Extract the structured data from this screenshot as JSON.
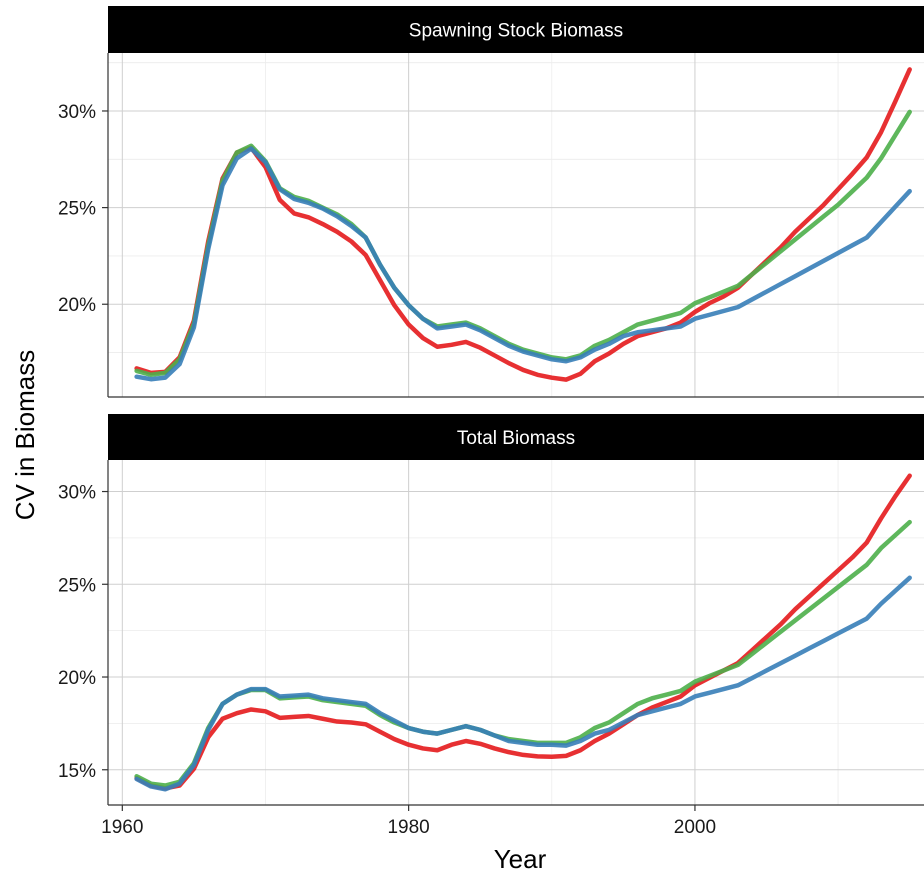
{
  "chart_data": {
    "type": "line",
    "xlabel": "Year",
    "ylabel": "CV in Biomass",
    "x_ticks": [
      1960,
      1980,
      2000
    ],
    "x_range": [
      1959,
      2016
    ],
    "legend": "none",
    "grid": true,
    "x": [
      1961,
      1962,
      1963,
      1964,
      1965,
      1966,
      1967,
      1968,
      1969,
      1970,
      1971,
      1972,
      1973,
      1974,
      1975,
      1976,
      1977,
      1978,
      1979,
      1980,
      1981,
      1982,
      1983,
      1984,
      1985,
      1986,
      1987,
      1988,
      1989,
      1990,
      1991,
      1992,
      1993,
      1994,
      1995,
      1996,
      1997,
      1998,
      1999,
      2000,
      2001,
      2002,
      2003,
      2004,
      2005,
      2006,
      2007,
      2008,
      2009,
      2010,
      2011,
      2012,
      2013,
      2014,
      2015
    ],
    "series_colors": [
      "#e41a1c",
      "#4daf4a",
      "#377eb8"
    ],
    "panels": [
      {
        "title": "Spawning Stock Biomass",
        "y_range": [
          0.152,
          0.33
        ],
        "y_ticks": [
          0.2,
          0.25,
          0.3
        ],
        "y_tick_labels": [
          "20%",
          "25%",
          "30%"
        ],
        "series": [
          {
            "color": "#e41a1c",
            "values": [
              0.1668,
              0.1645,
              0.165,
              0.1725,
              0.1915,
              0.2325,
              0.265,
              0.2785,
              0.281,
              0.271,
              0.254,
              0.247,
              0.245,
              0.2415,
              0.2375,
              0.2325,
              0.2255,
              0.2125,
              0.1995,
              0.1895,
              0.1825,
              0.178,
              0.179,
              0.1805,
              0.1775,
              0.1735,
              0.1695,
              0.166,
              0.1635,
              0.162,
              0.161,
              0.164,
              0.1705,
              0.1745,
              0.1795,
              0.1835,
              0.1855,
              0.1875,
              0.1905,
              0.196,
              0.2005,
              0.204,
              0.2085,
              0.2155,
              0.2225,
              0.2295,
              0.2375,
              0.2445,
              0.2515,
              0.2595,
              0.2675,
              0.276,
              0.289,
              0.305,
              0.3215
            ]
          },
          {
            "color": "#4daf4a",
            "values": [
              0.1655,
              0.1635,
              0.1645,
              0.1715,
              0.19,
              0.2305,
              0.264,
              0.2785,
              0.282,
              0.274,
              0.26,
              0.2555,
              0.2535,
              0.25,
              0.2465,
              0.2415,
              0.2345,
              0.2205,
              0.2085,
              0.1995,
              0.1925,
              0.1885,
              0.1895,
              0.1905,
              0.1875,
              0.1835,
              0.1795,
              0.1765,
              0.1745,
              0.1725,
              0.1715,
              0.1735,
              0.1785,
              0.1815,
              0.1855,
              0.1895,
              0.1915,
              0.1935,
              0.1955,
              0.2005,
              0.2035,
              0.2065,
              0.2095,
              0.2155,
              0.2215,
              0.2275,
              0.2335,
              0.2395,
              0.2455,
              0.2515,
              0.2585,
              0.2655,
              0.2755,
              0.2875,
              0.2995
            ]
          },
          {
            "color": "#377eb8",
            "values": [
              0.1625,
              0.1612,
              0.162,
              0.169,
              0.188,
              0.2285,
              0.2615,
              0.2755,
              0.2805,
              0.2735,
              0.2595,
              0.2545,
              0.2525,
              0.2495,
              0.2455,
              0.2405,
              0.2345,
              0.2205,
              0.2085,
              0.1995,
              0.1925,
              0.1875,
              0.1885,
              0.1895,
              0.1865,
              0.1825,
              0.1785,
              0.1755,
              0.1735,
              0.1715,
              0.1705,
              0.1725,
              0.1765,
              0.1795,
              0.1835,
              0.1855,
              0.1865,
              0.1875,
              0.1885,
              0.1925,
              0.1945,
              0.1965,
              0.1985,
              0.2025,
              0.2065,
              0.2105,
              0.2145,
              0.2185,
              0.2225,
              0.2265,
              0.2305,
              0.2345,
              0.2425,
              0.2505,
              0.2585
            ]
          }
        ]
      },
      {
        "title": "Total Biomass",
        "y_range": [
          0.131,
          0.317
        ],
        "y_ticks": [
          0.15,
          0.2,
          0.25,
          0.3
        ],
        "y_tick_labels": [
          "15%",
          "20%",
          "25%",
          "30%"
        ],
        "series": [
          {
            "color": "#e41a1c",
            "values": [
              0.1455,
              0.1415,
              0.14,
              0.1415,
              0.1505,
              0.1675,
              0.1775,
              0.1805,
              0.1825,
              0.1815,
              0.178,
              0.1785,
              0.179,
              0.1775,
              0.176,
              0.1755,
              0.1745,
              0.1705,
              0.1665,
              0.1635,
              0.1615,
              0.1605,
              0.1635,
              0.1655,
              0.164,
              0.1615,
              0.1595,
              0.158,
              0.1572,
              0.157,
              0.1575,
              0.1605,
              0.1655,
              0.1695,
              0.1745,
              0.1795,
              0.1835,
              0.1865,
              0.1895,
              0.1955,
              0.1995,
              0.2035,
              0.2075,
              0.2145,
              0.2215,
              0.2285,
              0.2365,
              0.2435,
              0.2505,
              0.2575,
              0.2645,
              0.2725,
              0.2855,
              0.2975,
              0.3085
            ]
          },
          {
            "color": "#4daf4a",
            "values": [
              0.1465,
              0.1425,
              0.1415,
              0.1435,
              0.1535,
              0.1725,
              0.1855,
              0.1905,
              0.193,
              0.193,
              0.1885,
              0.189,
              0.1895,
              0.1875,
              0.1865,
              0.1855,
              0.1845,
              0.1795,
              0.1755,
              0.1725,
              0.1705,
              0.1695,
              0.1715,
              0.1735,
              0.1715,
              0.1685,
              0.1665,
              0.1655,
              0.1645,
              0.1645,
              0.1645,
              0.1675,
              0.1725,
              0.1755,
              0.1805,
              0.1855,
              0.1885,
              0.1905,
              0.1925,
              0.1975,
              0.2005,
              0.2035,
              0.2065,
              0.2125,
              0.2185,
              0.2245,
              0.2305,
              0.2365,
              0.2425,
              0.2485,
              0.2545,
              0.2605,
              0.2695,
              0.2765,
              0.2835
            ]
          },
          {
            "color": "#377eb8",
            "values": [
              0.145,
              0.141,
              0.1395,
              0.1425,
              0.1525,
              0.1715,
              0.1855,
              0.1905,
              0.1935,
              0.1935,
              0.1895,
              0.19,
              0.1905,
              0.1885,
              0.1875,
              0.1865,
              0.1855,
              0.1805,
              0.1765,
              0.1725,
              0.1705,
              0.1695,
              0.1715,
              0.1735,
              0.1715,
              0.1685,
              0.1655,
              0.1645,
              0.1635,
              0.1635,
              0.163,
              0.1655,
              0.1695,
              0.1715,
              0.1755,
              0.1795,
              0.1815,
              0.1835,
              0.1855,
              0.1895,
              0.1915,
              0.1935,
              0.1955,
              0.1995,
              0.2035,
              0.2075,
              0.2115,
              0.2155,
              0.2195,
              0.2235,
              0.2275,
              0.2315,
              0.2395,
              0.2465,
              0.2535
            ]
          }
        ]
      }
    ]
  }
}
